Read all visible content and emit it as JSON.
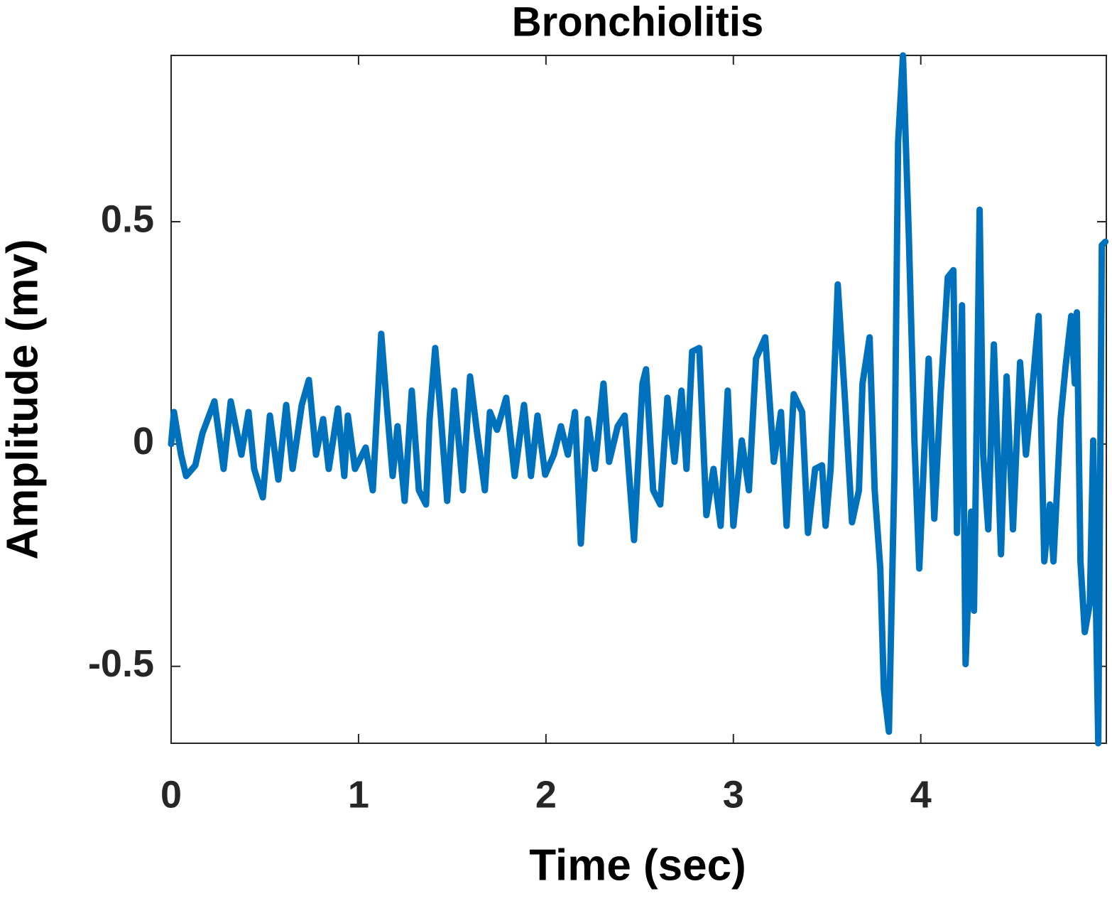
{
  "chart_data": {
    "type": "line",
    "title": "Bronchiolitis",
    "x_label": "Time (sec)",
    "y_label": "Amplitude (mv)",
    "color": "#0072bd",
    "x": [
      0,
      0.015,
      0.053,
      0.08,
      0.129,
      0.167,
      0.231,
      0.28,
      0.318,
      0.375,
      0.413,
      0.443,
      0.489,
      0.527,
      0.572,
      0.614,
      0.648,
      0.697,
      0.735,
      0.773,
      0.811,
      0.841,
      0.89,
      0.924,
      0.943,
      0.981,
      1.038,
      1.076,
      1.121,
      1.152,
      1.182,
      1.208,
      1.246,
      1.284,
      1.322,
      1.36,
      1.379,
      1.409,
      1.436,
      1.473,
      1.511,
      1.557,
      1.595,
      1.633,
      1.674,
      1.701,
      1.739,
      1.788,
      1.833,
      1.883,
      1.92,
      1.955,
      1.996,
      2.042,
      2.08,
      2.117,
      2.155,
      2.186,
      2.223,
      2.261,
      2.307,
      2.337,
      2.383,
      2.42,
      2.47,
      2.515,
      2.534,
      2.572,
      2.61,
      2.648,
      2.686,
      2.723,
      2.75,
      2.78,
      2.818,
      2.856,
      2.894,
      2.932,
      2.97,
      3.0,
      3.045,
      3.083,
      3.121,
      3.17,
      3.216,
      3.254,
      3.284,
      3.322,
      3.367,
      3.398,
      3.436,
      3.473,
      3.492,
      3.519,
      3.557,
      3.595,
      3.633,
      3.67,
      3.689,
      3.727,
      3.754,
      3.784,
      3.803,
      3.83,
      3.86,
      3.879,
      3.905,
      3.936,
      3.966,
      3.992,
      4.023,
      4.042,
      4.072,
      4.106,
      4.144,
      4.174,
      4.193,
      4.22,
      4.239,
      4.269,
      4.284,
      4.314,
      4.333,
      4.36,
      4.39,
      4.428,
      4.458,
      4.492,
      4.53,
      4.561,
      4.591,
      4.629,
      4.659,
      4.689,
      4.708,
      4.746,
      4.773,
      4.803,
      4.822,
      4.833,
      4.852,
      4.875,
      4.902,
      4.92,
      4.947,
      4.966,
      4.985
    ],
    "values": [
      0,
      0.072,
      -0.024,
      -0.072,
      -0.048,
      0.024,
      0.096,
      -0.056,
      0.096,
      -0.024,
      0.072,
      -0.056,
      -0.12,
      0.064,
      -0.08,
      0.088,
      -0.056,
      0.088,
      0.144,
      -0.024,
      0.056,
      -0.056,
      0.08,
      -0.072,
      0.064,
      -0.056,
      -0.008,
      -0.104,
      0.248,
      0.08,
      -0.072,
      0.04,
      -0.128,
      0.12,
      -0.104,
      -0.136,
      0.056,
      0.216,
      0.08,
      -0.128,
      0.12,
      -0.104,
      0.152,
      0.024,
      -0.104,
      0.072,
      0.032,
      0.104,
      -0.072,
      0.088,
      -0.072,
      0.064,
      -0.069,
      -0.024,
      0.04,
      -0.024,
      0.072,
      -0.224,
      0.056,
      -0.056,
      0.136,
      -0.04,
      0.04,
      0.064,
      -0.216,
      0.136,
      0.168,
      -0.104,
      -0.136,
      0.104,
      -0.04,
      0.12,
      -0.056,
      0.208,
      0.216,
      -0.16,
      -0.056,
      -0.184,
      0.12,
      -0.184,
      0.008,
      -0.104,
      0.192,
      0.24,
      -0.04,
      0.072,
      -0.184,
      0.112,
      0.072,
      -0.2,
      -0.056,
      -0.048,
      -0.184,
      -0.056,
      0.359,
      0.104,
      -0.176,
      -0.104,
      0.136,
      0.24,
      -0.104,
      -0.28,
      -0.551,
      -0.647,
      -0.056,
      0.679,
      0.874,
      0.471,
      0.008,
      -0.28,
      0.024,
      0.192,
      -0.168,
      0.112,
      0.375,
      0.391,
      -0.2,
      0.312,
      -0.495,
      -0.152,
      -0.375,
      0.527,
      -0.024,
      -0.192,
      0.224,
      -0.248,
      0.152,
      -0.192,
      0.184,
      -0.024,
      0.104,
      0.288,
      -0.264,
      -0.136,
      -0.264,
      0.056,
      0.176,
      0.288,
      0.136,
      0.296,
      -0.264,
      -0.423,
      -0.359,
      0.008,
      -0.673,
      0.447,
      0.455
    ],
    "xlim": [
      0,
      4.99
    ],
    "ylim": [
      -0.673,
      0.874
    ],
    "xticks": [
      0,
      1,
      2,
      3,
      4
    ],
    "yticks": [
      -0.5,
      0,
      0.5
    ],
    "grid": false
  }
}
